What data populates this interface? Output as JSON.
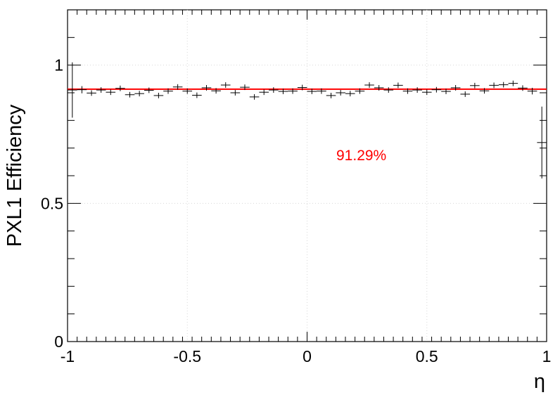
{
  "chart_data": {
    "type": "scatter",
    "xlabel": "η",
    "ylabel": "PXL1 Efficiency",
    "xlim": [
      -1,
      1
    ],
    "ylim": [
      0,
      1.2
    ],
    "grid": true,
    "x_ticks": [
      "-1",
      "-0.5",
      "0",
      "0.5",
      "1"
    ],
    "x_tick_values": [
      -1,
      -0.5,
      0,
      0.5,
      1
    ],
    "y_ticks": [
      "0",
      "0.5",
      "1"
    ],
    "y_tick_values": [
      0,
      0.5,
      1
    ],
    "fit_value": 0.9129,
    "annotation": "91.29%",
    "colors": {
      "fit": "#ff0000",
      "points": "#000000",
      "annotation": "#ff0000"
    },
    "bin_half_width": 0.02,
    "points": [
      {
        "x": -0.98,
        "y": 0.91,
        "err": 0.1
      },
      {
        "x": -0.94,
        "y": 0.911,
        "err": 0.013
      },
      {
        "x": -0.9,
        "y": 0.899,
        "err": 0.01
      },
      {
        "x": -0.86,
        "y": 0.91,
        "err": 0.01
      },
      {
        "x": -0.82,
        "y": 0.902,
        "err": 0.01
      },
      {
        "x": -0.78,
        "y": 0.916,
        "err": 0.01
      },
      {
        "x": -0.74,
        "y": 0.893,
        "err": 0.01
      },
      {
        "x": -0.7,
        "y": 0.897,
        "err": 0.01
      },
      {
        "x": -0.66,
        "y": 0.909,
        "err": 0.01
      },
      {
        "x": -0.62,
        "y": 0.89,
        "err": 0.01
      },
      {
        "x": -0.58,
        "y": 0.906,
        "err": 0.01
      },
      {
        "x": -0.54,
        "y": 0.921,
        "err": 0.01
      },
      {
        "x": -0.5,
        "y": 0.906,
        "err": 0.01
      },
      {
        "x": -0.46,
        "y": 0.891,
        "err": 0.01
      },
      {
        "x": -0.42,
        "y": 0.918,
        "err": 0.01
      },
      {
        "x": -0.38,
        "y": 0.907,
        "err": 0.01
      },
      {
        "x": -0.34,
        "y": 0.928,
        "err": 0.01
      },
      {
        "x": -0.3,
        "y": 0.9,
        "err": 0.01
      },
      {
        "x": -0.26,
        "y": 0.92,
        "err": 0.01
      },
      {
        "x": -0.22,
        "y": 0.885,
        "err": 0.01
      },
      {
        "x": -0.18,
        "y": 0.902,
        "err": 0.01
      },
      {
        "x": -0.14,
        "y": 0.91,
        "err": 0.01
      },
      {
        "x": -0.1,
        "y": 0.905,
        "err": 0.01
      },
      {
        "x": -0.06,
        "y": 0.906,
        "err": 0.01
      },
      {
        "x": -0.02,
        "y": 0.919,
        "err": 0.01
      },
      {
        "x": 0.02,
        "y": 0.905,
        "err": 0.01
      },
      {
        "x": 0.06,
        "y": 0.906,
        "err": 0.01
      },
      {
        "x": 0.1,
        "y": 0.89,
        "err": 0.01
      },
      {
        "x": 0.14,
        "y": 0.9,
        "err": 0.01
      },
      {
        "x": 0.18,
        "y": 0.897,
        "err": 0.01
      },
      {
        "x": 0.22,
        "y": 0.906,
        "err": 0.01
      },
      {
        "x": 0.26,
        "y": 0.928,
        "err": 0.01
      },
      {
        "x": 0.3,
        "y": 0.918,
        "err": 0.01
      },
      {
        "x": 0.34,
        "y": 0.91,
        "err": 0.01
      },
      {
        "x": 0.38,
        "y": 0.927,
        "err": 0.01
      },
      {
        "x": 0.42,
        "y": 0.906,
        "err": 0.01
      },
      {
        "x": 0.46,
        "y": 0.91,
        "err": 0.01
      },
      {
        "x": 0.5,
        "y": 0.902,
        "err": 0.01
      },
      {
        "x": 0.54,
        "y": 0.911,
        "err": 0.01
      },
      {
        "x": 0.58,
        "y": 0.905,
        "err": 0.01
      },
      {
        "x": 0.62,
        "y": 0.918,
        "err": 0.01
      },
      {
        "x": 0.66,
        "y": 0.895,
        "err": 0.01
      },
      {
        "x": 0.7,
        "y": 0.926,
        "err": 0.01
      },
      {
        "x": 0.74,
        "y": 0.907,
        "err": 0.01
      },
      {
        "x": 0.78,
        "y": 0.927,
        "err": 0.01
      },
      {
        "x": 0.82,
        "y": 0.929,
        "err": 0.01
      },
      {
        "x": 0.86,
        "y": 0.934,
        "err": 0.01
      },
      {
        "x": 0.9,
        "y": 0.917,
        "err": 0.01
      },
      {
        "x": 0.94,
        "y": 0.906,
        "err": 0.012
      },
      {
        "x": 0.98,
        "y": 0.72,
        "err": 0.13
      }
    ]
  }
}
